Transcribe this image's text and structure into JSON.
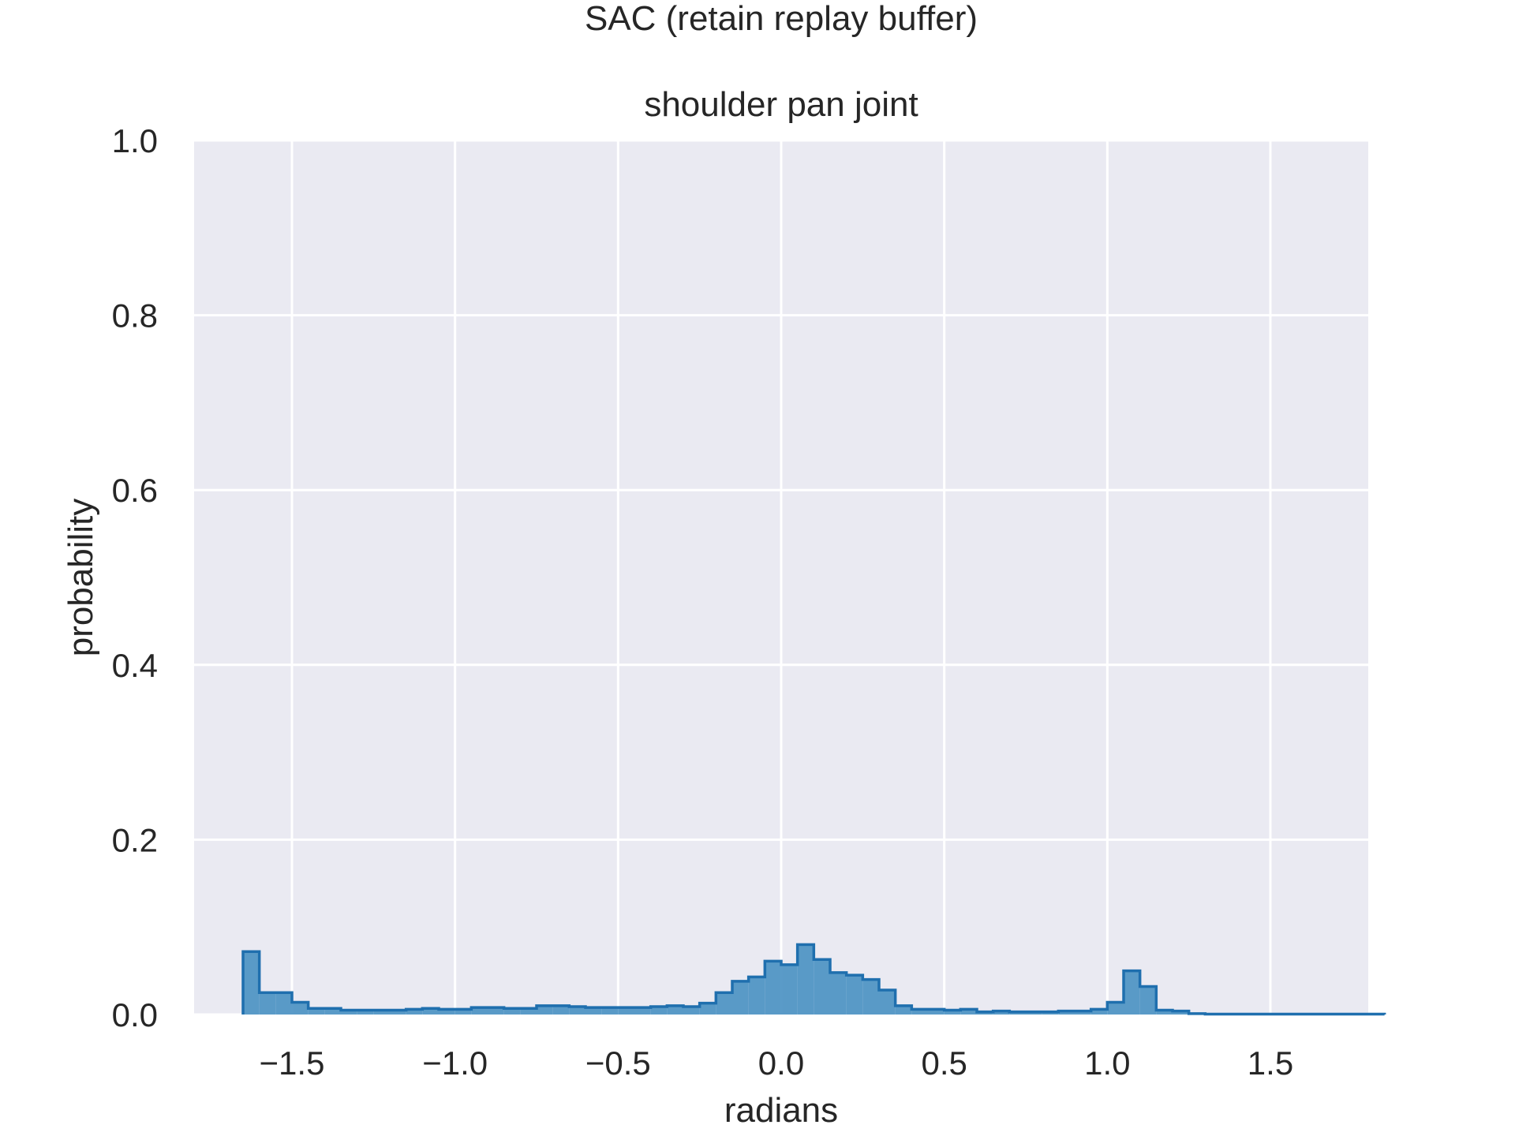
{
  "chart_data": {
    "type": "bar",
    "suptitle": "SAC (retain replay buffer)",
    "title": "shoulder pan joint",
    "xlabel": "radians",
    "ylabel": "probability",
    "xlim": [
      -1.8,
      1.8
    ],
    "ylim": [
      0,
      1.0
    ],
    "x_ticks": [
      -1.5,
      -1.0,
      -0.5,
      0.0,
      0.5,
      1.0,
      1.5
    ],
    "x_tick_labels": [
      "−1.5",
      "−1.0",
      "−0.5",
      "0.0",
      "0.5",
      "1.0",
      "1.5"
    ],
    "y_ticks": [
      0.0,
      0.2,
      0.4,
      0.6,
      0.8,
      1.0
    ],
    "y_tick_labels": [
      "0.0",
      "0.2",
      "0.4",
      "0.6",
      "0.8",
      "1.0"
    ],
    "grid": true,
    "colors": {
      "fill": "#4c92c3",
      "edge": "#1f6fae",
      "plot_bg": "#eaeaf2",
      "grid": "#ffffff"
    },
    "bin_start": -1.65,
    "bin_width": 0.05,
    "values": [
      0.072,
      0.025,
      0.025,
      0.014,
      0.007,
      0.007,
      0.005,
      0.005,
      0.005,
      0.005,
      0.006,
      0.007,
      0.006,
      0.006,
      0.008,
      0.008,
      0.007,
      0.007,
      0.01,
      0.01,
      0.009,
      0.008,
      0.008,
      0.008,
      0.008,
      0.009,
      0.01,
      0.009,
      0.013,
      0.025,
      0.038,
      0.043,
      0.061,
      0.057,
      0.08,
      0.063,
      0.048,
      0.045,
      0.04,
      0.028,
      0.01,
      0.006,
      0.006,
      0.005,
      0.006,
      0.003,
      0.004,
      0.003,
      0.003,
      0.003,
      0.004,
      0.004,
      0.006,
      0.014,
      0.05,
      0.032,
      0.005,
      0.004,
      0.001,
      0.0005,
      0.0005,
      0.0005,
      0.0005,
      0.0005,
      0.0005,
      0.0005,
      0.0005,
      0.0005,
      0.0005,
      0.0005
    ]
  }
}
